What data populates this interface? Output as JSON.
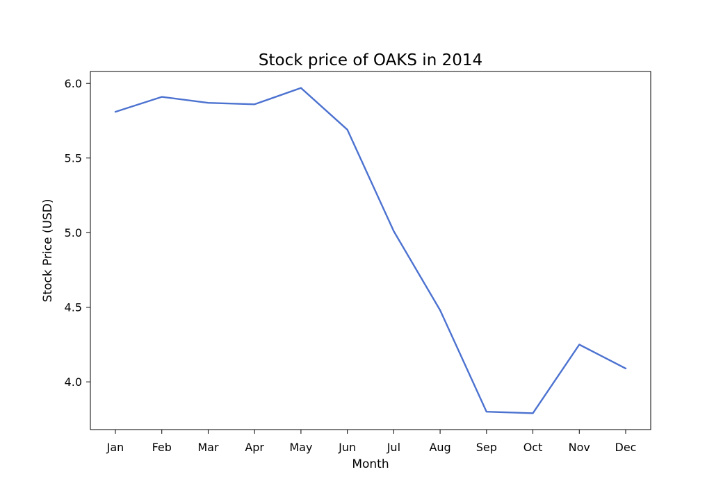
{
  "chart_data": {
    "type": "line",
    "title": "Stock price of OAKS in 2014",
    "xlabel": "Month",
    "ylabel": "Stock Price (USD)",
    "categories": [
      "Jan",
      "Feb",
      "Mar",
      "Apr",
      "May",
      "Jun",
      "Jul",
      "Aug",
      "Sep",
      "Oct",
      "Nov",
      "Dec"
    ],
    "series": [
      {
        "values": [
          5.81,
          5.91,
          5.87,
          5.86,
          5.97,
          5.69,
          5.01,
          4.48,
          3.8,
          3.79,
          4.25,
          4.09
        ],
        "color": "#4c72d0"
      }
    ],
    "yticks": [
      "4.0",
      "4.5",
      "5.0",
      "5.5",
      "6.0"
    ],
    "ylim": [
      3.68,
      6.08
    ],
    "grid": false,
    "legend": "none"
  }
}
